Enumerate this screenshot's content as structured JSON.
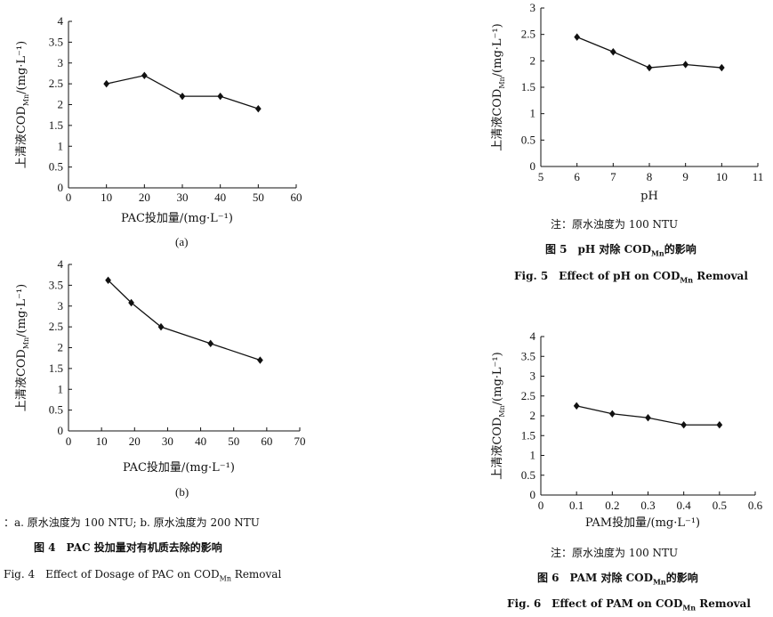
{
  "chart_data": [
    {
      "id": "fig4a",
      "type": "line",
      "x": [
        10,
        20,
        30,
        40,
        50
      ],
      "series": [
        {
          "values": [
            2.5,
            2.7,
            2.2,
            2.2,
            1.9
          ]
        }
      ],
      "xlabel": "PAC投加量/(mg·L⁻¹)",
      "ylabel": "上清液COD",
      "ylabel_sub": "Mn",
      "ylabel_unit": "/(mg·L⁻¹)",
      "xlim": [
        0,
        60
      ],
      "ylim": [
        0,
        4
      ],
      "xticks": [
        0,
        10,
        20,
        30,
        40,
        50,
        60
      ],
      "yticks": [
        0,
        0.5,
        1,
        1.5,
        2,
        2.5,
        3,
        3.5,
        4
      ],
      "panel_label": "(a)",
      "grid": false
    },
    {
      "id": "fig4b",
      "type": "line",
      "x": [
        12,
        19,
        28,
        43,
        58
      ],
      "series": [
        {
          "values": [
            3.62,
            3.08,
            2.5,
            2.1,
            1.7
          ]
        }
      ],
      "xlabel": "PAC投加量/(mg·L⁻¹)",
      "ylabel": "上清液COD",
      "ylabel_sub": "Mn",
      "ylabel_unit": "/(mg·L⁻¹)",
      "xlim": [
        0,
        70
      ],
      "ylim": [
        0,
        4
      ],
      "xticks": [
        0,
        10,
        20,
        30,
        40,
        50,
        60,
        70
      ],
      "yticks": [
        0,
        0.5,
        1,
        1.5,
        2,
        2.5,
        3,
        3.5,
        4
      ],
      "panel_label": "(b)",
      "grid": false
    },
    {
      "id": "fig5",
      "type": "line",
      "x": [
        6,
        7,
        8,
        9,
        10
      ],
      "series": [
        {
          "values": [
            2.45,
            2.17,
            1.87,
            1.93,
            1.87
          ]
        }
      ],
      "xlabel": "pH",
      "ylabel": "上清液COD",
      "ylabel_sub": "Mn",
      "ylabel_unit": "/(mg·L⁻¹)",
      "xlim": [
        5,
        11
      ],
      "ylim": [
        0,
        3
      ],
      "xticks": [
        5,
        6,
        7,
        8,
        9,
        10,
        11
      ],
      "yticks": [
        0,
        0.5,
        1,
        1.5,
        2,
        2.5,
        3
      ],
      "grid": false
    },
    {
      "id": "fig6",
      "type": "line",
      "x": [
        0.1,
        0.2,
        0.3,
        0.4,
        0.5
      ],
      "series": [
        {
          "values": [
            2.25,
            2.05,
            1.95,
            1.77,
            1.77
          ]
        }
      ],
      "xlabel": "PAM投加量/(mg·L⁻¹)",
      "ylabel": "上清液COD",
      "ylabel_sub": "Mn",
      "ylabel_unit": "/(mg·L⁻¹)",
      "xlim": [
        0,
        0.6
      ],
      "ylim": [
        0,
        4
      ],
      "xticks": [
        0,
        0.1,
        0.2,
        0.3,
        0.4,
        0.5,
        0.6
      ],
      "yticks": [
        0,
        0.5,
        1,
        1.5,
        2,
        2.5,
        3,
        3.5,
        4
      ],
      "grid": false
    }
  ],
  "captions": {
    "fig4": {
      "note": "：a. 原水浊度为 100 NTU; b. 原水浊度为 200 NTU",
      "cn": "图 4　PAC 投加量对有机质去除的影响",
      "en_pre": "Fig. 4　Effect of Dosage of PAC on COD",
      "en_sub": "Mn",
      "en_post": " Removal"
    },
    "fig5": {
      "note": "注：原水浊度为 100 NTU",
      "cn_pre": "图 5　pH 对除 COD",
      "cn_sub": "Mn",
      "cn_post": "的影响",
      "en_pre": "Fig. 5　Effect of pH on COD",
      "en_sub": "Mn",
      "en_post": " Removal"
    },
    "fig6": {
      "note": "注：原水浊度为 100 NTU",
      "cn_pre": "图 6　PAM 对除 COD",
      "cn_sub": "Mn",
      "cn_post": "的影响",
      "en_pre": "Fig. 6　Effect of PAM on COD",
      "en_sub": "Mn",
      "en_post": " Removal"
    }
  }
}
